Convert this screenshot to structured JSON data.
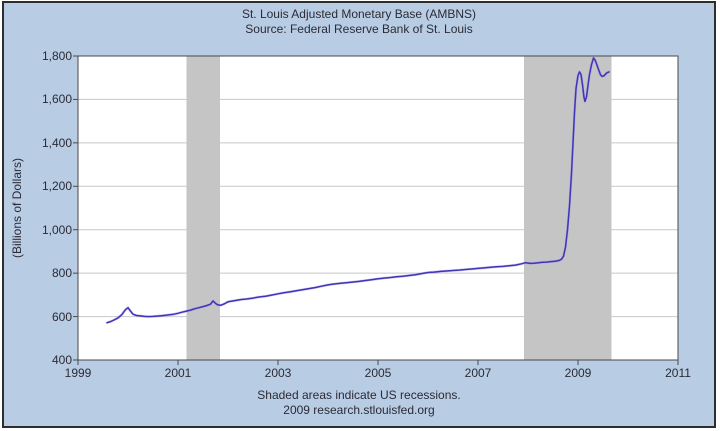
{
  "colors": {
    "background": "#b8cce4",
    "plot_background": "#ffffff",
    "recession_band": "#c5c5c5",
    "gridline": "#c9c9c9",
    "plot_border": "#4a4a4a",
    "outer_border": "#2d2d2d",
    "line": "#4134b8",
    "line_halo": "#9a91e8",
    "text": "#2b2b35"
  },
  "chart_data": {
    "type": "line",
    "title": "St. Louis Adjusted Monetary Base (AMBNS)",
    "subtitle": "Source: Federal Reserve Bank of St. Louis",
    "xlabel": "",
    "ylabel": "(Billions of Dollars)",
    "footnotes": [
      "Shaded areas indicate US recessions.",
      "2009 research.stlouisfed.org"
    ],
    "x_range": [
      1999,
      2011
    ],
    "y_range": [
      400,
      1800
    ],
    "x_ticks": [
      1999,
      2001,
      2003,
      2005,
      2007,
      2009,
      2011
    ],
    "y_ticks": [
      {
        "value": 400,
        "label": "400"
      },
      {
        "value": 600,
        "label": "600"
      },
      {
        "value": 800,
        "label": "800"
      },
      {
        "value": 1000,
        "label": "1,000"
      },
      {
        "value": 1200,
        "label": "1,200"
      },
      {
        "value": 1400,
        "label": "1,400"
      },
      {
        "value": 1600,
        "label": "1,600"
      },
      {
        "value": 1800,
        "label": "1,800"
      }
    ],
    "grid": "horizontal",
    "legend_position": "none",
    "recession_bands": [
      {
        "start": 2001.17,
        "end": 2001.84
      },
      {
        "start": 2007.92,
        "end": 2009.67
      }
    ],
    "series": [
      {
        "name": "AMBNS",
        "points": [
          [
            1999.58,
            572
          ],
          [
            1999.65,
            577
          ],
          [
            1999.72,
            584
          ],
          [
            1999.8,
            594
          ],
          [
            1999.88,
            610
          ],
          [
            1999.95,
            632
          ],
          [
            2000,
            641
          ],
          [
            2000.05,
            625
          ],
          [
            2000.1,
            611
          ],
          [
            2000.17,
            605
          ],
          [
            2000.25,
            603
          ],
          [
            2000.33,
            601
          ],
          [
            2000.42,
            600
          ],
          [
            2000.5,
            601
          ],
          [
            2000.58,
            602
          ],
          [
            2000.67,
            604
          ],
          [
            2000.75,
            606
          ],
          [
            2000.83,
            608
          ],
          [
            2000.92,
            611
          ],
          [
            2001,
            615
          ],
          [
            2001.08,
            620
          ],
          [
            2001.17,
            625
          ],
          [
            2001.25,
            630
          ],
          [
            2001.33,
            636
          ],
          [
            2001.42,
            641
          ],
          [
            2001.5,
            646
          ],
          [
            2001.58,
            651
          ],
          [
            2001.65,
            657
          ],
          [
            2001.7,
            672
          ],
          [
            2001.74,
            663
          ],
          [
            2001.79,
            654
          ],
          [
            2001.85,
            652
          ],
          [
            2001.92,
            658
          ],
          [
            2002,
            668
          ],
          [
            2002.12,
            673
          ],
          [
            2002.25,
            678
          ],
          [
            2002.37,
            681
          ],
          [
            2002.5,
            685
          ],
          [
            2002.62,
            690
          ],
          [
            2002.75,
            694
          ],
          [
            2002.87,
            699
          ],
          [
            2003,
            705
          ],
          [
            2003.12,
            710
          ],
          [
            2003.25,
            714
          ],
          [
            2003.37,
            719
          ],
          [
            2003.5,
            724
          ],
          [
            2003.62,
            729
          ],
          [
            2003.75,
            734
          ],
          [
            2003.87,
            740
          ],
          [
            2004,
            746
          ],
          [
            2004.12,
            750
          ],
          [
            2004.25,
            753
          ],
          [
            2004.37,
            756
          ],
          [
            2004.5,
            759
          ],
          [
            2004.62,
            762
          ],
          [
            2004.75,
            766
          ],
          [
            2004.87,
            770
          ],
          [
            2005,
            774
          ],
          [
            2005.12,
            777
          ],
          [
            2005.25,
            780
          ],
          [
            2005.37,
            783
          ],
          [
            2005.5,
            786
          ],
          [
            2005.62,
            789
          ],
          [
            2005.75,
            793
          ],
          [
            2005.87,
            798
          ],
          [
            2006,
            803
          ],
          [
            2006.12,
            805
          ],
          [
            2006.25,
            808
          ],
          [
            2006.37,
            810
          ],
          [
            2006.5,
            812
          ],
          [
            2006.62,
            814
          ],
          [
            2006.75,
            817
          ],
          [
            2006.87,
            819
          ],
          [
            2007,
            822
          ],
          [
            2007.12,
            824
          ],
          [
            2007.25,
            827
          ],
          [
            2007.37,
            829
          ],
          [
            2007.5,
            831
          ],
          [
            2007.62,
            834
          ],
          [
            2007.75,
            837
          ],
          [
            2007.87,
            843
          ],
          [
            2007.95,
            848
          ],
          [
            2008.04,
            845
          ],
          [
            2008.12,
            846
          ],
          [
            2008.21,
            848
          ],
          [
            2008.29,
            850
          ],
          [
            2008.37,
            851
          ],
          [
            2008.46,
            853
          ],
          [
            2008.54,
            855
          ],
          [
            2008.62,
            858
          ],
          [
            2008.67,
            864
          ],
          [
            2008.71,
            878
          ],
          [
            2008.75,
            920
          ],
          [
            2008.79,
            1000
          ],
          [
            2008.83,
            1110
          ],
          [
            2008.87,
            1260
          ],
          [
            2008.9,
            1400
          ],
          [
            2008.93,
            1540
          ],
          [
            2008.96,
            1650
          ],
          [
            2009,
            1710
          ],
          [
            2009.03,
            1727
          ],
          [
            2009.06,
            1715
          ],
          [
            2009.09,
            1668
          ],
          [
            2009.12,
            1610
          ],
          [
            2009.14,
            1591
          ],
          [
            2009.17,
            1612
          ],
          [
            2009.2,
            1665
          ],
          [
            2009.23,
            1715
          ],
          [
            2009.27,
            1760
          ],
          [
            2009.31,
            1791
          ],
          [
            2009.34,
            1782
          ],
          [
            2009.38,
            1758
          ],
          [
            2009.42,
            1732
          ],
          [
            2009.45,
            1714
          ],
          [
            2009.48,
            1706
          ],
          [
            2009.52,
            1709
          ],
          [
            2009.55,
            1716
          ],
          [
            2009.58,
            1723
          ],
          [
            2009.62,
            1727
          ]
        ]
      }
    ]
  }
}
